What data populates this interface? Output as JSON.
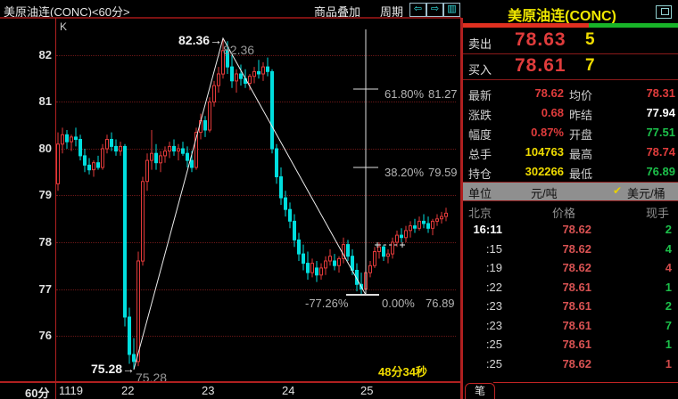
{
  "window": {
    "title": "美原油连(CONC)<60分>",
    "menu_overlay": "商品叠加",
    "menu_period": "周期",
    "icon_back": "⇦",
    "icon_forward": "⇨",
    "icon_tile": "▥"
  },
  "chart": {
    "k_label": "K",
    "y_labels": [
      "82",
      "81",
      "80",
      "79",
      "78",
      "77",
      "76"
    ],
    "x_period": "60分",
    "x_date": "1119",
    "x_days": [
      "22",
      "23",
      "24",
      "25"
    ],
    "peak_label": "82.36→",
    "peak_label_gray": "82.36",
    "low_label": "75.28→",
    "low_label_gray": "75.28",
    "fib": [
      {
        "pct": "61.80%",
        "price": "81.27"
      },
      {
        "pct": "38.20%",
        "price": "79.59"
      }
    ],
    "fib_neg": "-77.26%",
    "fib_zero_pct": "0.00%",
    "fib_zero_price": "76.89",
    "countdown": "48分34秒"
  },
  "chart_data": {
    "type": "candlestick",
    "interval": "60min",
    "symbol": "美原油连(CONC)",
    "price_axis": [
      82,
      81,
      80,
      79,
      78,
      77,
      76
    ],
    "high": 82.36,
    "low": 75.28,
    "fib_levels": [
      {
        "pct": 61.8,
        "price": 81.27
      },
      {
        "pct": 38.2,
        "price": 79.59
      },
      {
        "pct": 0.0,
        "price": 76.89
      }
    ],
    "prev_settle": 77.94,
    "up_color": "#e23a3a",
    "down_color": "#00dede",
    "candles": [
      [
        79.25,
        80.35,
        79.1,
        80.1
      ],
      [
        80.1,
        80.45,
        79.9,
        80.3
      ],
      [
        80.3,
        80.4,
        80.0,
        80.15
      ],
      [
        80.15,
        80.3,
        79.95,
        80.25
      ],
      [
        80.25,
        80.45,
        80.05,
        80.2
      ],
      [
        80.2,
        80.3,
        79.75,
        79.85
      ],
      [
        79.85,
        80.0,
        79.5,
        79.65
      ],
      [
        79.65,
        79.8,
        79.45,
        79.55
      ],
      [
        79.55,
        79.75,
        79.4,
        79.7
      ],
      [
        79.7,
        79.85,
        79.55,
        79.6
      ],
      [
        79.6,
        80.1,
        79.55,
        80.0
      ],
      [
        80.0,
        80.3,
        79.9,
        80.2
      ],
      [
        80.2,
        80.35,
        79.95,
        80.05
      ],
      [
        80.05,
        80.2,
        79.85,
        79.95
      ],
      [
        79.95,
        80.15,
        79.85,
        80.05
      ],
      [
        80.05,
        80.1,
        76.2,
        76.4
      ],
      [
        76.4,
        76.6,
        75.4,
        75.6
      ],
      [
        75.6,
        75.95,
        75.28,
        75.45
      ],
      [
        75.45,
        77.8,
        75.35,
        77.6
      ],
      [
        77.6,
        79.4,
        77.5,
        79.3
      ],
      [
        79.3,
        79.9,
        79.1,
        79.75
      ],
      [
        79.75,
        80.4,
        79.55,
        79.9
      ],
      [
        79.9,
        80.1,
        79.55,
        79.7
      ],
      [
        79.7,
        79.95,
        79.5,
        79.85
      ],
      [
        79.85,
        80.05,
        79.7,
        79.95
      ],
      [
        79.95,
        80.15,
        79.8,
        80.05
      ],
      [
        80.05,
        80.2,
        79.85,
        79.95
      ],
      [
        79.95,
        80.1,
        79.75,
        80.0
      ],
      [
        80.0,
        80.15,
        79.85,
        79.9
      ],
      [
        79.9,
        80.05,
        79.6,
        79.75
      ],
      [
        79.75,
        79.95,
        79.5,
        79.6
      ],
      [
        79.6,
        80.45,
        79.55,
        80.35
      ],
      [
        80.35,
        80.75,
        80.2,
        80.6
      ],
      [
        80.6,
        80.7,
        80.25,
        80.4
      ],
      [
        80.4,
        81.1,
        80.35,
        81.0
      ],
      [
        81.0,
        81.45,
        80.9,
        81.35
      ],
      [
        81.35,
        81.75,
        81.2,
        81.6
      ],
      [
        81.6,
        82.36,
        81.5,
        82.1
      ],
      [
        82.1,
        82.3,
        81.6,
        81.75
      ],
      [
        81.75,
        82.0,
        81.3,
        81.45
      ],
      [
        81.45,
        81.7,
        81.2,
        81.6
      ],
      [
        81.6,
        81.8,
        81.35,
        81.5
      ],
      [
        81.5,
        81.7,
        81.3,
        81.4
      ],
      [
        81.4,
        81.6,
        81.25,
        81.55
      ],
      [
        81.55,
        81.75,
        81.4,
        81.65
      ],
      [
        81.65,
        81.9,
        81.5,
        81.6
      ],
      [
        81.6,
        81.85,
        81.45,
        81.75
      ],
      [
        81.75,
        81.95,
        81.55,
        81.65
      ],
      [
        81.65,
        81.7,
        79.9,
        80.0
      ],
      [
        80.0,
        80.1,
        79.25,
        79.4
      ],
      [
        79.4,
        79.6,
        78.8,
        78.95
      ],
      [
        78.95,
        79.1,
        78.55,
        78.7
      ],
      [
        78.7,
        78.85,
        78.3,
        78.45
      ],
      [
        78.45,
        78.6,
        77.9,
        78.05
      ],
      [
        78.05,
        78.2,
        77.6,
        77.75
      ],
      [
        77.75,
        77.95,
        77.4,
        77.55
      ],
      [
        77.55,
        77.8,
        77.2,
        77.35
      ],
      [
        77.35,
        77.65,
        77.25,
        77.55
      ],
      [
        77.45,
        77.6,
        77.15,
        77.3
      ],
      [
        77.3,
        77.55,
        77.2,
        77.45
      ],
      [
        77.45,
        77.7,
        77.3,
        77.6
      ],
      [
        77.6,
        77.85,
        77.5,
        77.7
      ],
      [
        77.6,
        77.75,
        77.4,
        77.5
      ],
      [
        77.5,
        77.7,
        77.35,
        77.65
      ],
      [
        77.65,
        78.1,
        77.55,
        77.95
      ],
      [
        77.95,
        78.05,
        77.6,
        77.7
      ],
      [
        77.7,
        77.85,
        77.3,
        77.4
      ],
      [
        77.4,
        77.55,
        76.95,
        77.1
      ],
      [
        77.1,
        77.35,
        76.89,
        77.0
      ],
      [
        77.0,
        77.45,
        76.95,
        77.35
      ],
      [
        77.35,
        77.6,
        77.25,
        77.5
      ],
      [
        77.5,
        77.9,
        77.45,
        77.8
      ],
      [
        77.8,
        78.0,
        77.65,
        77.9
      ],
      [
        77.9,
        77.95,
        77.6,
        77.7
      ],
      [
        77.7,
        77.85,
        77.55,
        77.75
      ],
      [
        77.75,
        78.1,
        77.65,
        78.0
      ],
      [
        78.0,
        78.25,
        77.9,
        78.15
      ],
      [
        78.15,
        78.3,
        78.0,
        78.1
      ],
      [
        78.1,
        78.35,
        78.0,
        78.25
      ],
      [
        78.25,
        78.45,
        78.1,
        78.35
      ],
      [
        78.35,
        78.5,
        78.2,
        78.3
      ],
      [
        78.3,
        78.55,
        78.25,
        78.45
      ],
      [
        78.45,
        78.6,
        78.3,
        78.4
      ],
      [
        78.4,
        78.55,
        78.2,
        78.3
      ],
      [
        78.3,
        78.5,
        78.15,
        78.45
      ],
      [
        78.45,
        78.6,
        78.35,
        78.5
      ],
      [
        78.5,
        78.65,
        78.4,
        78.55
      ],
      [
        78.55,
        78.74,
        78.45,
        78.62
      ]
    ]
  },
  "panel": {
    "title": "美原油连(CONC)",
    "ask": {
      "label": "卖出",
      "price": "78.63",
      "qty": "5"
    },
    "bid": {
      "label": "买入",
      "price": "78.61",
      "qty": "7"
    },
    "stats": [
      {
        "l1": "最新",
        "v1": "78.62",
        "v1_class": "s-v1 red",
        "l2": "均价",
        "v2": "78.31",
        "v2_class": "s-v2 red"
      },
      {
        "l1": "涨跌",
        "v1": "0.68",
        "v1_class": "s-v1 red",
        "l2": "昨结",
        "v2": "77.94",
        "v2_class": "s-v2 white"
      },
      {
        "l1": "幅度",
        "v1": "0.87%",
        "v1_class": "s-v1 red",
        "l2": "开盘",
        "v2": "77.51",
        "v2_class": "s-v2 green"
      },
      {
        "l1": "总手",
        "v1": "104763",
        "v1_class": "s-v1 yellow",
        "l2": "最高",
        "v2": "78.74",
        "v2_class": "s-v2 red"
      },
      {
        "l1": "持仓",
        "v1": "302266",
        "v1_class": "s-v1 yellow",
        "l2": "最低",
        "v2": "76.89",
        "v2_class": "s-v2 green"
      }
    ],
    "unit": {
      "label": "单位",
      "opt1": "元/吨",
      "check": "✔",
      "opt2": "美元/桶"
    },
    "list_header": {
      "time": "北京",
      "price": "价格",
      "vol": "现手"
    },
    "trades": [
      {
        "time": "16:11",
        "time_class": "ttime bright",
        "price": "78.62",
        "vol": "2",
        "vol_class": "tvol green"
      },
      {
        "time": ":15",
        "time_class": "ttime",
        "price": "78.62",
        "vol": "4",
        "vol_class": "tvol green"
      },
      {
        "time": ":19",
        "time_class": "ttime",
        "price": "78.62",
        "vol": "4",
        "vol_class": "tvol red"
      },
      {
        "time": ":22",
        "time_class": "ttime",
        "price": "78.61",
        "vol": "1",
        "vol_class": "tvol green"
      },
      {
        "time": ":23",
        "time_class": "ttime",
        "price": "78.61",
        "vol": "2",
        "vol_class": "tvol green"
      },
      {
        "time": ":23",
        "time_class": "ttime",
        "price": "78.61",
        "vol": "7",
        "vol_class": "tvol green"
      },
      {
        "time": ":25",
        "time_class": "ttime",
        "price": "78.61",
        "vol": "1",
        "vol_class": "tvol green"
      },
      {
        "time": ":25",
        "time_class": "ttime",
        "price": "78.62",
        "vol": "1",
        "vol_class": "tvol red"
      }
    ],
    "tab": "笔"
  }
}
